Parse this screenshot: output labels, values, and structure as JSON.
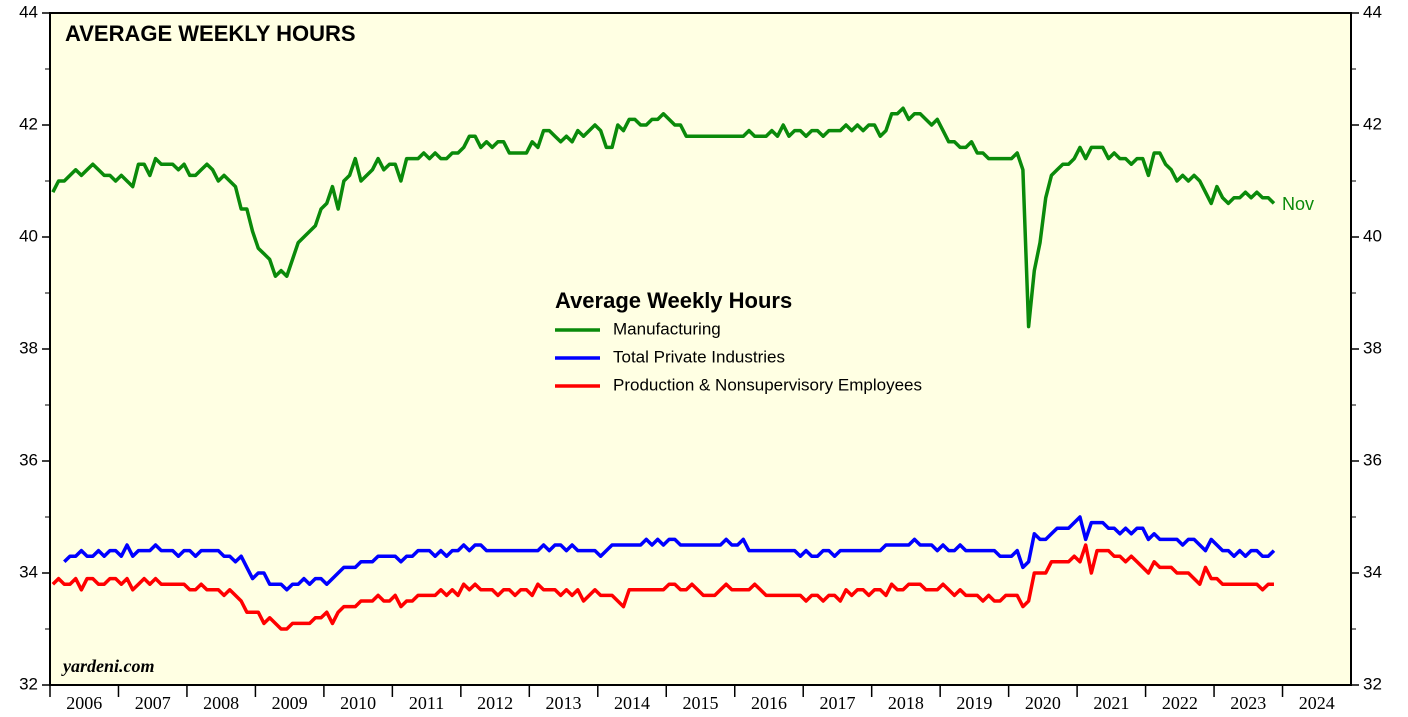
{
  "chart_data": {
    "type": "line",
    "title": "AVERAGE WEEKLY HOURS",
    "legend_title": "Average Weekly Hours",
    "annotation": "Nov",
    "source": "yardeni.com",
    "x": [
      "2006-01",
      "2006-02",
      "2006-03",
      "2006-04",
      "2006-05",
      "2006-06",
      "2006-07",
      "2006-08",
      "2006-09",
      "2006-10",
      "2006-11",
      "2006-12",
      "2007-01",
      "2007-02",
      "2007-03",
      "2007-04",
      "2007-05",
      "2007-06",
      "2007-07",
      "2007-08",
      "2007-09",
      "2007-10",
      "2007-11",
      "2007-12",
      "2008-01",
      "2008-02",
      "2008-03",
      "2008-04",
      "2008-05",
      "2008-06",
      "2008-07",
      "2008-08",
      "2008-09",
      "2008-10",
      "2008-11",
      "2008-12",
      "2009-01",
      "2009-02",
      "2009-03",
      "2009-04",
      "2009-05",
      "2009-06",
      "2009-07",
      "2009-08",
      "2009-09",
      "2009-10",
      "2009-11",
      "2009-12",
      "2010-01",
      "2010-02",
      "2010-03",
      "2010-04",
      "2010-05",
      "2010-06",
      "2010-07",
      "2010-08",
      "2010-09",
      "2010-10",
      "2010-11",
      "2010-12",
      "2011-01",
      "2011-02",
      "2011-03",
      "2011-04",
      "2011-05",
      "2011-06",
      "2011-07",
      "2011-08",
      "2011-09",
      "2011-10",
      "2011-11",
      "2011-12",
      "2012-01",
      "2012-02",
      "2012-03",
      "2012-04",
      "2012-05",
      "2012-06",
      "2012-07",
      "2012-08",
      "2012-09",
      "2012-10",
      "2012-11",
      "2012-12",
      "2013-01",
      "2013-02",
      "2013-03",
      "2013-04",
      "2013-05",
      "2013-06",
      "2013-07",
      "2013-08",
      "2013-09",
      "2013-10",
      "2013-11",
      "2013-12",
      "2014-01",
      "2014-02",
      "2014-03",
      "2014-04",
      "2014-05",
      "2014-06",
      "2014-07",
      "2014-08",
      "2014-09",
      "2014-10",
      "2014-11",
      "2014-12",
      "2015-01",
      "2015-02",
      "2015-03",
      "2015-04",
      "2015-05",
      "2015-06",
      "2015-07",
      "2015-08",
      "2015-09",
      "2015-10",
      "2015-11",
      "2015-12",
      "2016-01",
      "2016-02",
      "2016-03",
      "2016-04",
      "2016-05",
      "2016-06",
      "2016-07",
      "2016-08",
      "2016-09",
      "2016-10",
      "2016-11",
      "2016-12",
      "2017-01",
      "2017-02",
      "2017-03",
      "2017-04",
      "2017-05",
      "2017-06",
      "2017-07",
      "2017-08",
      "2017-09",
      "2017-10",
      "2017-11",
      "2017-12",
      "2018-01",
      "2018-02",
      "2018-03",
      "2018-04",
      "2018-05",
      "2018-06",
      "2018-07",
      "2018-08",
      "2018-09",
      "2018-10",
      "2018-11",
      "2018-12",
      "2019-01",
      "2019-02",
      "2019-03",
      "2019-04",
      "2019-05",
      "2019-06",
      "2019-07",
      "2019-08",
      "2019-09",
      "2019-10",
      "2019-11",
      "2019-12",
      "2020-01",
      "2020-02",
      "2020-03",
      "2020-04",
      "2020-05",
      "2020-06",
      "2020-07",
      "2020-08",
      "2020-09",
      "2020-10",
      "2020-11",
      "2020-12",
      "2021-01",
      "2021-02",
      "2021-03",
      "2021-04",
      "2021-05",
      "2021-06",
      "2021-07",
      "2021-08",
      "2021-09",
      "2021-10",
      "2021-11",
      "2021-12",
      "2022-01",
      "2022-02",
      "2022-03",
      "2022-04",
      "2022-05",
      "2022-06",
      "2022-07",
      "2022-08",
      "2022-09",
      "2022-10",
      "2022-11",
      "2022-12",
      "2023-01",
      "2023-02",
      "2023-03",
      "2023-04",
      "2023-05",
      "2023-06",
      "2023-07",
      "2023-08",
      "2023-09",
      "2023-10",
      "2023-11"
    ],
    "series": [
      {
        "name": "Manufacturing",
        "color": "#0a8a0a",
        "values": [
          40.8,
          41.0,
          41.0,
          41.1,
          41.2,
          41.1,
          41.2,
          41.3,
          41.2,
          41.1,
          41.1,
          41.0,
          41.1,
          41.0,
          40.9,
          41.3,
          41.3,
          41.1,
          41.4,
          41.3,
          41.3,
          41.3,
          41.2,
          41.3,
          41.1,
          41.1,
          41.2,
          41.3,
          41.2,
          41.0,
          41.1,
          41.0,
          40.9,
          40.5,
          40.5,
          40.1,
          39.8,
          39.7,
          39.6,
          39.3,
          39.4,
          39.3,
          39.6,
          39.9,
          40.0,
          40.1,
          40.2,
          40.5,
          40.6,
          40.9,
          40.5,
          41.0,
          41.1,
          41.4,
          41.0,
          41.1,
          41.2,
          41.4,
          41.2,
          41.3,
          41.3,
          41.0,
          41.4,
          41.4,
          41.4,
          41.5,
          41.4,
          41.5,
          41.4,
          41.4,
          41.5,
          41.5,
          41.6,
          41.8,
          41.8,
          41.6,
          41.7,
          41.6,
          41.7,
          41.7,
          41.5,
          41.5,
          41.5,
          41.5,
          41.7,
          41.6,
          41.9,
          41.9,
          41.8,
          41.7,
          41.8,
          41.7,
          41.9,
          41.8,
          41.9,
          42.0,
          41.9,
          41.6,
          41.6,
          42.0,
          41.9,
          42.1,
          42.1,
          42.0,
          42.0,
          42.1,
          42.1,
          42.2,
          42.1,
          42.0,
          42.0,
          41.8,
          41.8,
          41.8,
          41.8,
          41.8,
          41.8,
          41.8,
          41.8,
          41.8,
          41.8,
          41.8,
          41.9,
          41.8,
          41.8,
          41.8,
          41.9,
          41.8,
          42.0,
          41.8,
          41.9,
          41.9,
          41.8,
          41.9,
          41.9,
          41.8,
          41.9,
          41.9,
          41.9,
          42.0,
          41.9,
          42.0,
          41.9,
          42.0,
          42.0,
          41.8,
          41.9,
          42.2,
          42.2,
          42.3,
          42.1,
          42.2,
          42.2,
          42.1,
          42.0,
          42.1,
          41.9,
          41.7,
          41.7,
          41.6,
          41.6,
          41.7,
          41.5,
          41.5,
          41.4,
          41.4,
          41.4,
          41.4,
          41.4,
          41.5,
          41.2,
          38.4,
          39.4,
          39.9,
          40.7,
          41.1,
          41.2,
          41.3,
          41.3,
          41.4,
          41.6,
          41.4,
          41.6,
          41.6,
          41.6,
          41.4,
          41.5,
          41.4,
          41.4,
          41.3,
          41.4,
          41.4,
          41.1,
          41.5,
          41.5,
          41.3,
          41.2,
          41.0,
          41.1,
          41.0,
          41.1,
          41.0,
          40.8,
          40.6,
          40.9,
          40.7,
          40.6,
          40.7,
          40.7,
          40.8,
          40.7,
          40.8,
          40.7,
          40.7,
          40.6
        ]
      },
      {
        "name": "Total Private Industries",
        "color": "#0000ff",
        "values": [
          null,
          null,
          34.2,
          34.3,
          34.3,
          34.4,
          34.3,
          34.3,
          34.4,
          34.3,
          34.4,
          34.4,
          34.3,
          34.5,
          34.3,
          34.4,
          34.4,
          34.4,
          34.5,
          34.4,
          34.4,
          34.4,
          34.3,
          34.4,
          34.4,
          34.3,
          34.4,
          34.4,
          34.4,
          34.4,
          34.3,
          34.3,
          34.2,
          34.3,
          34.1,
          33.9,
          34.0,
          34.0,
          33.8,
          33.8,
          33.8,
          33.7,
          33.8,
          33.8,
          33.9,
          33.8,
          33.9,
          33.9,
          33.8,
          33.9,
          34.0,
          34.1,
          34.1,
          34.1,
          34.2,
          34.2,
          34.2,
          34.3,
          34.3,
          34.3,
          34.3,
          34.2,
          34.3,
          34.3,
          34.4,
          34.4,
          34.4,
          34.3,
          34.4,
          34.3,
          34.4,
          34.4,
          34.5,
          34.4,
          34.5,
          34.5,
          34.4,
          34.4,
          34.4,
          34.4,
          34.4,
          34.4,
          34.4,
          34.4,
          34.4,
          34.4,
          34.5,
          34.4,
          34.5,
          34.5,
          34.4,
          34.5,
          34.4,
          34.4,
          34.4,
          34.4,
          34.3,
          34.4,
          34.5,
          34.5,
          34.5,
          34.5,
          34.5,
          34.5,
          34.6,
          34.5,
          34.6,
          34.5,
          34.6,
          34.6,
          34.5,
          34.5,
          34.5,
          34.5,
          34.5,
          34.5,
          34.5,
          34.5,
          34.6,
          34.5,
          34.5,
          34.6,
          34.4,
          34.4,
          34.4,
          34.4,
          34.4,
          34.4,
          34.4,
          34.4,
          34.4,
          34.3,
          34.4,
          34.3,
          34.3,
          34.4,
          34.4,
          34.3,
          34.4,
          34.4,
          34.4,
          34.4,
          34.4,
          34.4,
          34.4,
          34.4,
          34.5,
          34.5,
          34.5,
          34.5,
          34.5,
          34.6,
          34.5,
          34.5,
          34.5,
          34.4,
          34.5,
          34.4,
          34.4,
          34.5,
          34.4,
          34.4,
          34.4,
          34.4,
          34.4,
          34.4,
          34.3,
          34.3,
          34.3,
          34.4,
          34.1,
          34.2,
          34.7,
          34.6,
          34.6,
          34.7,
          34.8,
          34.8,
          34.8,
          34.9,
          35.0,
          34.6,
          34.9,
          34.9,
          34.9,
          34.8,
          34.8,
          34.7,
          34.8,
          34.7,
          34.8,
          34.8,
          34.6,
          34.7,
          34.6,
          34.6,
          34.6,
          34.6,
          34.5,
          34.6,
          34.6,
          34.5,
          34.4,
          34.6,
          34.5,
          34.4,
          34.4,
          34.3,
          34.4,
          34.3,
          34.4,
          34.4,
          34.3,
          34.3,
          34.4
        ]
      },
      {
        "name": "Production & Nonsupervisory Employees",
        "color": "#ff0000",
        "values": [
          33.8,
          33.9,
          33.8,
          33.8,
          33.9,
          33.7,
          33.9,
          33.9,
          33.8,
          33.8,
          33.9,
          33.9,
          33.8,
          33.9,
          33.7,
          33.8,
          33.9,
          33.8,
          33.9,
          33.8,
          33.8,
          33.8,
          33.8,
          33.8,
          33.7,
          33.7,
          33.8,
          33.7,
          33.7,
          33.7,
          33.6,
          33.7,
          33.6,
          33.5,
          33.3,
          33.3,
          33.3,
          33.1,
          33.2,
          33.1,
          33.0,
          33.0,
          33.1,
          33.1,
          33.1,
          33.1,
          33.2,
          33.2,
          33.3,
          33.1,
          33.3,
          33.4,
          33.4,
          33.4,
          33.5,
          33.5,
          33.5,
          33.6,
          33.5,
          33.5,
          33.6,
          33.4,
          33.5,
          33.5,
          33.6,
          33.6,
          33.6,
          33.6,
          33.7,
          33.6,
          33.7,
          33.6,
          33.8,
          33.7,
          33.8,
          33.7,
          33.7,
          33.7,
          33.6,
          33.7,
          33.7,
          33.6,
          33.7,
          33.7,
          33.6,
          33.8,
          33.7,
          33.7,
          33.7,
          33.6,
          33.7,
          33.6,
          33.7,
          33.5,
          33.6,
          33.7,
          33.6,
          33.6,
          33.6,
          33.5,
          33.4,
          33.7,
          33.7,
          33.7,
          33.7,
          33.7,
          33.7,
          33.7,
          33.8,
          33.8,
          33.7,
          33.7,
          33.8,
          33.7,
          33.6,
          33.6,
          33.6,
          33.7,
          33.8,
          33.7,
          33.7,
          33.7,
          33.7,
          33.8,
          33.7,
          33.6,
          33.6,
          33.6,
          33.6,
          33.6,
          33.6,
          33.6,
          33.5,
          33.6,
          33.6,
          33.5,
          33.6,
          33.6,
          33.5,
          33.7,
          33.6,
          33.7,
          33.7,
          33.6,
          33.7,
          33.7,
          33.6,
          33.8,
          33.7,
          33.7,
          33.8,
          33.8,
          33.8,
          33.7,
          33.7,
          33.7,
          33.8,
          33.7,
          33.6,
          33.7,
          33.6,
          33.6,
          33.6,
          33.5,
          33.6,
          33.5,
          33.5,
          33.6,
          33.6,
          33.6,
          33.4,
          33.5,
          34.0,
          34.0,
          34.0,
          34.2,
          34.2,
          34.2,
          34.2,
          34.3,
          34.2,
          34.5,
          34.0,
          34.4,
          34.4,
          34.4,
          34.3,
          34.3,
          34.2,
          34.3,
          34.2,
          34.1,
          34.0,
          34.2,
          34.1,
          34.1,
          34.1,
          34.0,
          34.0,
          34.0,
          33.9,
          33.8,
          34.1,
          33.9,
          33.9,
          33.8,
          33.8,
          33.8,
          33.8,
          33.8,
          33.8,
          33.8,
          33.7,
          33.8,
          33.8
        ]
      }
    ],
    "xlim": [
      2006,
      2025
    ],
    "xticks": [
      2006,
      2007,
      2008,
      2009,
      2010,
      2011,
      2012,
      2013,
      2014,
      2015,
      2016,
      2017,
      2018,
      2019,
      2020,
      2021,
      2022,
      2023,
      2024
    ],
    "ylim": [
      32,
      44
    ],
    "yticks": [
      32,
      34,
      36,
      38,
      40,
      42,
      44
    ],
    "yminor_ticks": [
      33,
      35,
      37,
      39,
      41,
      43
    ],
    "y2lim": [
      32,
      44
    ],
    "y2ticks": [
      32,
      34,
      36,
      38,
      40,
      42,
      44
    ]
  }
}
